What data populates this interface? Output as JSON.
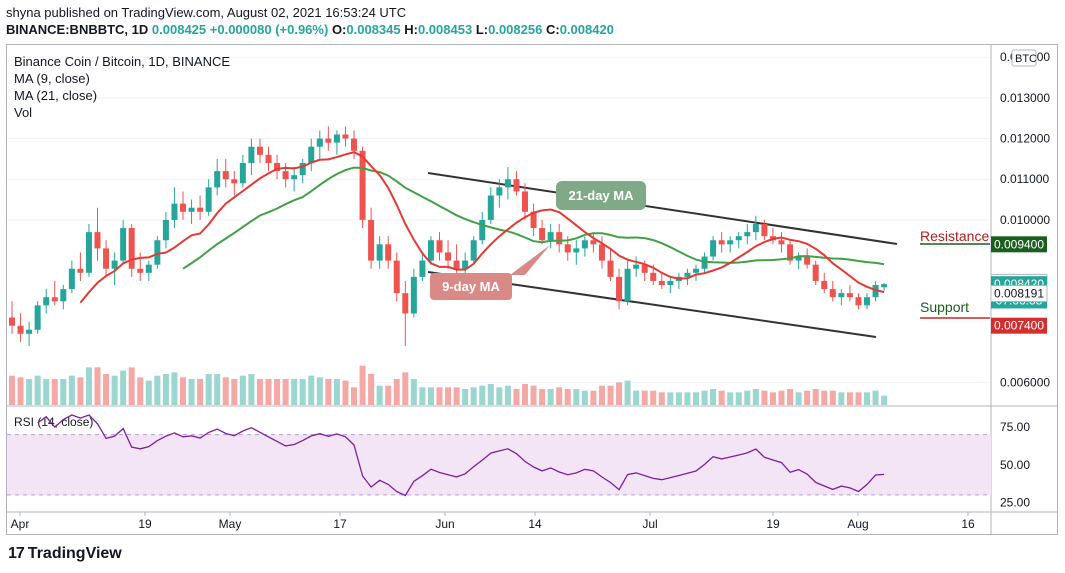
{
  "header": {
    "line1": "shyna published on TradingView.com, August 02, 2021 16:53:24 UTC",
    "symbol": "BINANCE:BNBBTC, 1D",
    "last": "0.008425",
    "change": "+0.000080 (+0.96%)",
    "o_label": "O:",
    "o": "0.008345",
    "h_label": "H:",
    "h": "0.008453",
    "l_label": "L:",
    "l": "0.008256",
    "c_label": "C:",
    "c": "0.008420"
  },
  "legend": {
    "title": "Binance Coin / Bitcoin, 1D, BINANCE",
    "ma9": "MA (9, close)",
    "ma21": "MA (21, close)",
    "vol": "Vol",
    "rsi": "RSI (14, close)"
  },
  "currency_badge": "BTC",
  "brand": {
    "logo": "17",
    "name": "TradingView"
  },
  "colors": {
    "up": "#26a69a",
    "down": "#ef5350",
    "ma9": "#e53935",
    "ma21": "#43a047",
    "rsi": "#7b1fa2",
    "rsi_band": "#f3e5f5"
  },
  "annotations": {
    "ma21_label": "21-day MA",
    "ma9_label": "9-day MA",
    "resistance": "Resistance",
    "support": "Support"
  },
  "chart_data": {
    "type": "candlestick",
    "y_axis": {
      "ticks": [
        "0.014000",
        "0.013000",
        "0.012000",
        "0.011000",
        "0.010000",
        "0.006000"
      ],
      "tick_values": [
        0.014,
        0.013,
        0.012,
        0.011,
        0.01,
        0.006
      ],
      "range": [
        0.00545,
        0.0143
      ]
    },
    "price_labels": [
      {
        "text": "0.009400",
        "value": 0.0094,
        "color": "#1b5e20"
      },
      {
        "text": "0.008464",
        "value": 0.008464,
        "color": "#ffffff"
      },
      {
        "text": "0.008420",
        "value": 0.00842,
        "color": "#26a69a"
      },
      {
        "text": "07:06:38",
        "value": 0.00802,
        "color": "#26a69a"
      },
      {
        "text": "0.008191",
        "value": 0.008191,
        "color": "#ffffff"
      },
      {
        "text": "0.007400",
        "value": 0.0074,
        "color": "#d32f2f"
      }
    ],
    "x_axis": {
      "labels": [
        "Apr",
        "19",
        "May",
        "17",
        "Jun",
        "14",
        "Jul",
        "19",
        "Aug",
        "16"
      ]
    },
    "ohlc_daily": [
      [
        0.0076,
        0.008,
        0.0072,
        0.0074
      ],
      [
        0.0074,
        0.0077,
        0.007,
        0.0072
      ],
      [
        0.0072,
        0.0075,
        0.0069,
        0.0073
      ],
      [
        0.0073,
        0.008,
        0.0072,
        0.0079
      ],
      [
        0.0079,
        0.0083,
        0.0077,
        0.0081
      ],
      [
        0.0081,
        0.0085,
        0.0079,
        0.008
      ],
      [
        0.008,
        0.0084,
        0.0078,
        0.0083
      ],
      [
        0.0083,
        0.009,
        0.0082,
        0.0088
      ],
      [
        0.0088,
        0.0092,
        0.0085,
        0.0087
      ],
      [
        0.0087,
        0.0099,
        0.0086,
        0.0097
      ],
      [
        0.0097,
        0.0103,
        0.009,
        0.0093
      ],
      [
        0.0093,
        0.0095,
        0.0086,
        0.0088
      ],
      [
        0.0088,
        0.0092,
        0.0084,
        0.009
      ],
      [
        0.009,
        0.01,
        0.0089,
        0.0098
      ],
      [
        0.0098,
        0.0099,
        0.0086,
        0.0088
      ],
      [
        0.0088,
        0.0092,
        0.0085,
        0.0087
      ],
      [
        0.0087,
        0.009,
        0.0085,
        0.0089
      ],
      [
        0.0089,
        0.0096,
        0.0088,
        0.0095
      ],
      [
        0.0095,
        0.0102,
        0.0093,
        0.01
      ],
      [
        0.01,
        0.0108,
        0.0098,
        0.0104
      ],
      [
        0.0104,
        0.0107,
        0.01,
        0.0102
      ],
      [
        0.0102,
        0.0105,
        0.0099,
        0.0103
      ],
      [
        0.0103,
        0.0106,
        0.01,
        0.0102
      ],
      [
        0.0102,
        0.011,
        0.0101,
        0.0108
      ],
      [
        0.0108,
        0.0115,
        0.0106,
        0.0112
      ],
      [
        0.0112,
        0.0115,
        0.0108,
        0.011
      ],
      [
        0.011,
        0.0112,
        0.0106,
        0.0109
      ],
      [
        0.0109,
        0.0116,
        0.0108,
        0.0114
      ],
      [
        0.0114,
        0.012,
        0.0111,
        0.0118
      ],
      [
        0.0118,
        0.012,
        0.0114,
        0.0116
      ],
      [
        0.0116,
        0.0118,
        0.0112,
        0.0114
      ],
      [
        0.0114,
        0.0116,
        0.011,
        0.0112
      ],
      [
        0.0112,
        0.0114,
        0.0108,
        0.011
      ],
      [
        0.011,
        0.0113,
        0.0107,
        0.0111
      ],
      [
        0.0111,
        0.0115,
        0.0109,
        0.0114
      ],
      [
        0.0114,
        0.012,
        0.0112,
        0.0118
      ],
      [
        0.0118,
        0.0122,
        0.0115,
        0.012
      ],
      [
        0.012,
        0.0123,
        0.0117,
        0.0119
      ],
      [
        0.0119,
        0.0122,
        0.0116,
        0.0121
      ],
      [
        0.0121,
        0.0123,
        0.0118,
        0.012
      ],
      [
        0.012,
        0.0122,
        0.0115,
        0.0117
      ],
      [
        0.0117,
        0.0118,
        0.0098,
        0.01
      ],
      [
        0.01,
        0.0103,
        0.0088,
        0.009
      ],
      [
        0.009,
        0.0096,
        0.0088,
        0.0094
      ],
      [
        0.0094,
        0.0096,
        0.0088,
        0.009
      ],
      [
        0.009,
        0.0092,
        0.008,
        0.0082
      ],
      [
        0.0082,
        0.0085,
        0.0069,
        0.0077
      ],
      [
        0.0077,
        0.0088,
        0.0076,
        0.0086
      ],
      [
        0.0086,
        0.0092,
        0.0085,
        0.009
      ],
      [
        0.009,
        0.0096,
        0.0089,
        0.0095
      ],
      [
        0.0095,
        0.0097,
        0.009,
        0.0092
      ],
      [
        0.0092,
        0.0095,
        0.0088,
        0.009
      ],
      [
        0.009,
        0.0094,
        0.0087,
        0.0088
      ],
      [
        0.0088,
        0.0092,
        0.0086,
        0.009
      ],
      [
        0.009,
        0.0096,
        0.0089,
        0.0095
      ],
      [
        0.0095,
        0.0102,
        0.0094,
        0.01
      ],
      [
        0.01,
        0.0108,
        0.0099,
        0.0106
      ],
      [
        0.0106,
        0.011,
        0.0103,
        0.0108
      ],
      [
        0.0108,
        0.0113,
        0.0105,
        0.011
      ],
      [
        0.011,
        0.0112,
        0.0106,
        0.0107
      ],
      [
        0.0107,
        0.0109,
        0.01,
        0.0102
      ],
      [
        0.0102,
        0.0104,
        0.0096,
        0.0098
      ],
      [
        0.0098,
        0.01,
        0.0094,
        0.0095
      ],
      [
        0.0095,
        0.0099,
        0.0093,
        0.0097
      ],
      [
        0.0097,
        0.0099,
        0.0092,
        0.0094
      ],
      [
        0.0094,
        0.0096,
        0.009,
        0.0092
      ],
      [
        0.0092,
        0.0095,
        0.0089,
        0.0093
      ],
      [
        0.0093,
        0.0096,
        0.0091,
        0.0095
      ],
      [
        0.0095,
        0.0097,
        0.0092,
        0.0094
      ],
      [
        0.0094,
        0.0096,
        0.0088,
        0.009
      ],
      [
        0.009,
        0.0093,
        0.0085,
        0.0086
      ],
      [
        0.0086,
        0.0088,
        0.0078,
        0.008
      ],
      [
        0.008,
        0.009,
        0.0079,
        0.0088
      ],
      [
        0.0088,
        0.0091,
        0.0086,
        0.0089
      ],
      [
        0.0089,
        0.009,
        0.0085,
        0.0087
      ],
      [
        0.0087,
        0.0089,
        0.0084,
        0.0085
      ],
      [
        0.0085,
        0.0087,
        0.0083,
        0.0084
      ],
      [
        0.0084,
        0.0086,
        0.0082,
        0.0085
      ],
      [
        0.0085,
        0.0087,
        0.0083,
        0.0086
      ],
      [
        0.0086,
        0.0088,
        0.0084,
        0.0087
      ],
      [
        0.0087,
        0.0089,
        0.0085,
        0.0088
      ],
      [
        0.0088,
        0.0092,
        0.0087,
        0.0091
      ],
      [
        0.0091,
        0.0096,
        0.009,
        0.0095
      ],
      [
        0.0095,
        0.0097,
        0.0092,
        0.0094
      ],
      [
        0.0094,
        0.0096,
        0.0092,
        0.0095
      ],
      [
        0.0095,
        0.0097,
        0.0093,
        0.0096
      ],
      [
        0.0096,
        0.0099,
        0.0094,
        0.0097
      ],
      [
        0.0097,
        0.0101,
        0.0095,
        0.0099
      ],
      [
        0.0099,
        0.01,
        0.0095,
        0.0096
      ],
      [
        0.0096,
        0.0098,
        0.0094,
        0.0095
      ],
      [
        0.0095,
        0.0097,
        0.0092,
        0.0094
      ],
      [
        0.0094,
        0.0095,
        0.0089,
        0.009
      ],
      [
        0.009,
        0.0092,
        0.0088,
        0.0091
      ],
      [
        0.0091,
        0.0093,
        0.0088,
        0.0089
      ],
      [
        0.0089,
        0.009,
        0.0084,
        0.0085
      ],
      [
        0.0085,
        0.0087,
        0.0082,
        0.0083
      ],
      [
        0.0083,
        0.0085,
        0.008,
        0.0081
      ],
      [
        0.0081,
        0.0083,
        0.0079,
        0.0082
      ],
      [
        0.0082,
        0.0084,
        0.008,
        0.0081
      ],
      [
        0.0081,
        0.0082,
        0.0078,
        0.0079
      ],
      [
        0.0079,
        0.0082,
        0.0078,
        0.0081
      ],
      [
        0.0081,
        0.0085,
        0.008,
        0.0084
      ],
      [
        0.008345,
        0.008453,
        0.008256,
        0.00842
      ]
    ],
    "ma9_label": "MA (9, close)",
    "ma21_label": "MA (21, close)",
    "rsi": {
      "ticks": [
        "75.00",
        "50.00",
        "25.00"
      ],
      "tick_values": [
        75,
        50,
        25
      ],
      "range": [
        20,
        85
      ],
      "band": [
        30,
        70
      ]
    }
  }
}
